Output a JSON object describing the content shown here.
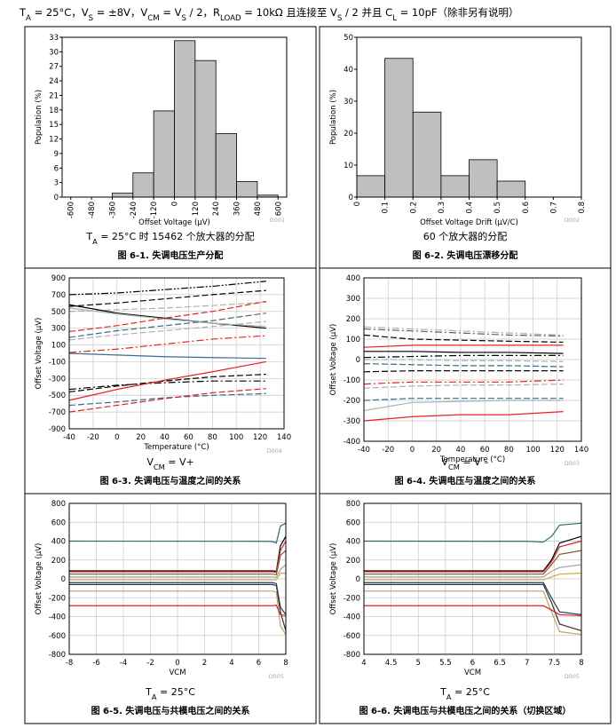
{
  "header": [
    {
      "text": "T"
    },
    {
      "text": "A",
      "sub": true
    },
    {
      "text": " = 25°C，V"
    },
    {
      "text": "S",
      "sub": true
    },
    {
      "text": " = ±8V，V"
    },
    {
      "text": "CM",
      "sub": true
    },
    {
      "text": " = V"
    },
    {
      "text": "S",
      "sub": true
    },
    {
      "text": " / 2，R"
    },
    {
      "text": "LOAD",
      "sub": true
    },
    {
      "text": " = 10kΩ 且连接至 V"
    },
    {
      "text": "S",
      "sub": true
    },
    {
      "text": " / 2 并且 C"
    },
    {
      "text": "L",
      "sub": true
    },
    {
      "text": " = 10pF（除非另有说明）"
    }
  ],
  "chart_data": [
    {
      "type": "histogram",
      "xlabel": "Offset Voltage (μV)",
      "ylabel": "Population (%)",
      "code": "D001",
      "subcaption": [
        {
          "text": "T"
        },
        {
          "text": "A",
          "sub": true
        },
        {
          "text": " = 25°C 时 15462 个放大器的分配"
        }
      ],
      "caption": "图 6-1. 失调电压生产分配",
      "color": "#bfbfbf",
      "bins": [
        -600,
        -480,
        -360,
        -240,
        -120,
        0,
        120,
        240,
        360,
        480,
        600
      ],
      "values": [
        0,
        0,
        0.8,
        5,
        17.8,
        32.3,
        28.2,
        13.1,
        3.2,
        0.4
      ],
      "xlim": [
        -650,
        650
      ],
      "ylim": [
        0,
        33
      ],
      "xticks": [
        -600,
        -480,
        -360,
        -240,
        -120,
        0,
        120,
        240,
        360,
        480,
        600
      ],
      "yticks": [
        0,
        3,
        6,
        9,
        12,
        15,
        18,
        21,
        24,
        27,
        30,
        33
      ],
      "grid": false
    },
    {
      "type": "histogram",
      "xlabel": "Offset Voltage Drift (μV/C)",
      "ylabel": "Population (%)",
      "code": "D002",
      "subcaption": [
        {
          "text": "60 个放大器的分配"
        }
      ],
      "caption": "图 6-2. 失调电压漂移分配",
      "color": "#bfbfbf",
      "bins": [
        0,
        0.1,
        0.2,
        0.3,
        0.4,
        0.5,
        0.6,
        0.7,
        0.8
      ],
      "values": [
        6.7,
        43.4,
        26.6,
        6.7,
        11.7,
        5,
        0,
        0
      ],
      "xlim": [
        0,
        0.8
      ],
      "ylim": [
        0,
        50
      ],
      "xticks": [
        0,
        0.1,
        0.2,
        0.3,
        0.4,
        0.5,
        0.6,
        0.7,
        0.8
      ],
      "yticks": [
        0,
        10,
        20,
        30,
        40,
        50
      ],
      "grid": false
    },
    {
      "type": "line",
      "xlabel": "Temperature (°C)",
      "ylabel": "Offset Voltage (μV)",
      "code": "D004",
      "subcaption": [
        {
          "text": "V"
        },
        {
          "text": "CM",
          "sub": true
        },
        {
          "text": " = V+"
        }
      ],
      "caption": "图 6-3. 失调电压与温度之间的关系",
      "xlim": [
        -40,
        140
      ],
      "ylim": [
        -900,
        900
      ],
      "xticks": [
        -40,
        -20,
        0,
        20,
        40,
        60,
        80,
        100,
        120,
        140
      ],
      "yticks": [
        -900,
        -700,
        -500,
        -300,
        -100,
        100,
        300,
        500,
        700,
        900
      ],
      "grid": true,
      "x": [
        -40,
        0,
        40,
        80,
        125
      ],
      "series": [
        {
          "color": "#000000",
          "dash": "dashdotdot",
          "values": [
            700,
            720,
            760,
            800,
            860
          ]
        },
        {
          "color": "#000000",
          "dash": "dashed",
          "values": [
            560,
            600,
            650,
            700,
            750
          ]
        },
        {
          "color": "#b0b0b0",
          "dash": "dashed",
          "values": [
            500,
            520,
            540,
            570,
            610
          ]
        },
        {
          "color": "#000000",
          "dash": "solid",
          "values": [
            580,
            480,
            420,
            360,
            300
          ]
        },
        {
          "color": "#b0b0b0",
          "dash": "solid",
          "values": [
            540,
            470,
            410,
            360,
            320
          ]
        },
        {
          "color": "#e8211e",
          "dash": "dashed",
          "values": [
            260,
            330,
            420,
            500,
            620
          ]
        },
        {
          "color": "#3d6b8a",
          "dash": "dashed",
          "values": [
            190,
            270,
            330,
            390,
            480
          ]
        },
        {
          "color": "#b0b0b0",
          "dash": "dashed",
          "values": [
            160,
            220,
            270,
            320,
            380
          ]
        },
        {
          "color": "#e8211e",
          "dash": "dashdot",
          "values": [
            10,
            50,
            110,
            170,
            210
          ]
        },
        {
          "color": "#3d6b8a",
          "dash": "solid",
          "values": [
            0,
            -20,
            -40,
            -50,
            -60
          ]
        },
        {
          "color": "#000000",
          "dash": "dashed",
          "values": [
            -460,
            -390,
            -330,
            -280,
            -250
          ]
        },
        {
          "color": "#000000",
          "dash": "dashdot",
          "values": [
            -430,
            -380,
            -350,
            -330,
            -330
          ]
        },
        {
          "color": "#e8211e",
          "dash": "solid",
          "values": [
            -560,
            -430,
            -320,
            -220,
            -100
          ]
        },
        {
          "color": "#3d6b8a",
          "dash": "dashed",
          "values": [
            -620,
            -580,
            -530,
            -500,
            -480
          ]
        },
        {
          "color": "#e8211e",
          "dash": "dashed",
          "values": [
            -700,
            -620,
            -540,
            -470,
            -420
          ]
        }
      ]
    },
    {
      "type": "line",
      "xlabel": "Temperature (°C)",
      "ylabel": "Offset Voltage (μV)",
      "code": "D003",
      "subcaption": [
        {
          "text": "V"
        },
        {
          "text": "CM",
          "sub": true
        },
        {
          "text": " = V –"
        }
      ],
      "caption": "图 6-4. 失调电压与温度之间的关系",
      "xlim": [
        -40,
        140
      ],
      "ylim": [
        -400,
        400
      ],
      "xticks": [
        -40,
        -20,
        0,
        20,
        40,
        60,
        80,
        100,
        120,
        140
      ],
      "yticks": [
        -400,
        -300,
        -200,
        -100,
        0,
        100,
        200,
        300,
        400
      ],
      "grid": true,
      "x": [
        -40,
        0,
        40,
        80,
        125
      ],
      "series": [
        {
          "color": "#b0b0b0",
          "dash": "dashdot",
          "values": [
            160,
            150,
            140,
            130,
            120
          ]
        },
        {
          "color": "#3d6b8a",
          "dash": "dashdot",
          "values": [
            150,
            140,
            130,
            120,
            115
          ]
        },
        {
          "color": "#000000",
          "dash": "dashed",
          "values": [
            120,
            100,
            95,
            90,
            85
          ]
        },
        {
          "color": "#e8211e",
          "dash": "solid",
          "values": [
            60,
            70,
            70,
            70,
            70
          ]
        },
        {
          "color": "#000000",
          "dash": "solid",
          "values": [
            40,
            40,
            35,
            35,
            30
          ]
        },
        {
          "color": "#000000",
          "dash": "dashdot",
          "values": [
            10,
            15,
            20,
            20,
            20
          ]
        },
        {
          "color": "#b0b0b0",
          "dash": "dashed",
          "values": [
            0,
            0,
            -5,
            -5,
            -10
          ]
        },
        {
          "color": "#3d6b8a",
          "dash": "dashed",
          "values": [
            -20,
            -25,
            -30,
            -30,
            -35
          ]
        },
        {
          "color": "#000000",
          "dash": "dashed",
          "values": [
            -60,
            -55,
            -55,
            -55,
            -55
          ]
        },
        {
          "color": "#e8211e",
          "dash": "dashdot",
          "values": [
            -120,
            -110,
            -110,
            -110,
            -100
          ]
        },
        {
          "color": "#b0b0b0",
          "dash": "dashed",
          "values": [
            -140,
            -130,
            -125,
            -125,
            -120
          ]
        },
        {
          "color": "#3d6b8a",
          "dash": "dashed",
          "values": [
            -200,
            -190,
            -190,
            -190,
            -190
          ]
        },
        {
          "color": "#b0b0b0",
          "dash": "solid",
          "values": [
            -250,
            -210,
            -205,
            -200,
            -200
          ]
        },
        {
          "color": "#e8211e",
          "dash": "solid",
          "values": [
            -300,
            -280,
            -270,
            -270,
            -255
          ]
        }
      ]
    },
    {
      "type": "line",
      "xlabel": "VCM",
      "ylabel": "Offset Voltage (μV)",
      "code": "D005",
      "subcaption": [
        {
          "text": "T"
        },
        {
          "text": "A",
          "sub": true
        },
        {
          "text": " = 25°C"
        }
      ],
      "caption": "图 6-5. 失调电压与共模电压之间的关系",
      "xlim": [
        -8,
        8
      ],
      "ylim": [
        -800,
        800
      ],
      "xticks": [
        -8,
        -6,
        -4,
        -2,
        0,
        2,
        4,
        6,
        8
      ],
      "yticks": [
        -800,
        -600,
        -400,
        -200,
        0,
        200,
        400,
        600,
        800
      ],
      "grid": true,
      "x": [
        -8,
        6.5,
        7,
        7.3,
        7.6,
        8
      ],
      "series": [
        {
          "color": "#2b6a6a",
          "dash": "solid",
          "values": [
            400,
            398,
            395,
            380,
            560,
            590
          ]
        },
        {
          "color": "#000000",
          "dash": "solid",
          "values": [
            85,
            85,
            85,
            80,
            350,
            450
          ]
        },
        {
          "color": "#e8211e",
          "dash": "solid",
          "values": [
            75,
            75,
            75,
            70,
            300,
            400
          ]
        },
        {
          "color": "#7a5a3a",
          "dash": "solid",
          "values": [
            50,
            50,
            50,
            45,
            250,
            300
          ]
        },
        {
          "color": "#a0a0a0",
          "dash": "solid",
          "values": [
            20,
            20,
            20,
            15,
            100,
            150
          ]
        },
        {
          "color": "#c8b040",
          "dash": "solid",
          "values": [
            -10,
            -10,
            -10,
            -10,
            60,
            60
          ]
        },
        {
          "color": "#1f3f6f",
          "dash": "solid",
          "values": [
            -40,
            -40,
            -40,
            -50,
            -300,
            -380
          ]
        },
        {
          "color": "#333333",
          "dash": "solid",
          "values": [
            -60,
            -60,
            -60,
            -70,
            -350,
            -550
          ]
        },
        {
          "color": "#c4a060",
          "dash": "solid",
          "values": [
            -130,
            -130,
            -130,
            -140,
            -500,
            -590
          ]
        },
        {
          "color": "#e02020",
          "dash": "solid",
          "values": [
            -285,
            -285,
            -285,
            -280,
            -380,
            -390
          ]
        }
      ]
    },
    {
      "type": "line",
      "xlabel": "VCM",
      "ylabel": "Offset Voltage (μV)",
      "code": "D005",
      "subcaption": [
        {
          "text": "T"
        },
        {
          "text": "A",
          "sub": true
        },
        {
          "text": " = 25°C"
        }
      ],
      "caption": "图 6-6. 失调电压与共模电压之间的关系（切换区域）",
      "xlim": [
        4,
        8
      ],
      "ylim": [
        -800,
        800
      ],
      "xticks": [
        4,
        4.5,
        5,
        5.5,
        6,
        6.5,
        7,
        7.5,
        8
      ],
      "yticks": [
        -800,
        -600,
        -400,
        -200,
        0,
        200,
        400,
        600,
        800
      ],
      "grid": true,
      "x": [
        4,
        7,
        7.3,
        7.45,
        7.6,
        8
      ],
      "series": [
        {
          "color": "#2b6a6a",
          "dash": "solid",
          "values": [
            400,
            398,
            390,
            450,
            570,
            590
          ]
        },
        {
          "color": "#000000",
          "dash": "solid",
          "values": [
            85,
            85,
            85,
            200,
            380,
            450
          ]
        },
        {
          "color": "#e8211e",
          "dash": "solid",
          "values": [
            75,
            75,
            75,
            180,
            340,
            400
          ]
        },
        {
          "color": "#7a5a3a",
          "dash": "solid",
          "values": [
            50,
            50,
            50,
            150,
            260,
            300
          ]
        },
        {
          "color": "#a0a0a0",
          "dash": "solid",
          "values": [
            20,
            20,
            20,
            80,
            120,
            150
          ]
        },
        {
          "color": "#c8b040",
          "dash": "solid",
          "values": [
            -10,
            -10,
            -10,
            20,
            50,
            60
          ]
        },
        {
          "color": "#1f3f6f",
          "dash": "solid",
          "values": [
            -40,
            -40,
            -40,
            -200,
            -350,
            -380
          ]
        },
        {
          "color": "#333333",
          "dash": "solid",
          "values": [
            -60,
            -60,
            -60,
            -250,
            -480,
            -550
          ]
        },
        {
          "color": "#c4a060",
          "dash": "solid",
          "values": [
            -130,
            -130,
            -130,
            -350,
            -560,
            -590
          ]
        },
        {
          "color": "#e02020",
          "dash": "solid",
          "values": [
            -285,
            -285,
            -285,
            -330,
            -380,
            -390
          ]
        }
      ]
    }
  ]
}
